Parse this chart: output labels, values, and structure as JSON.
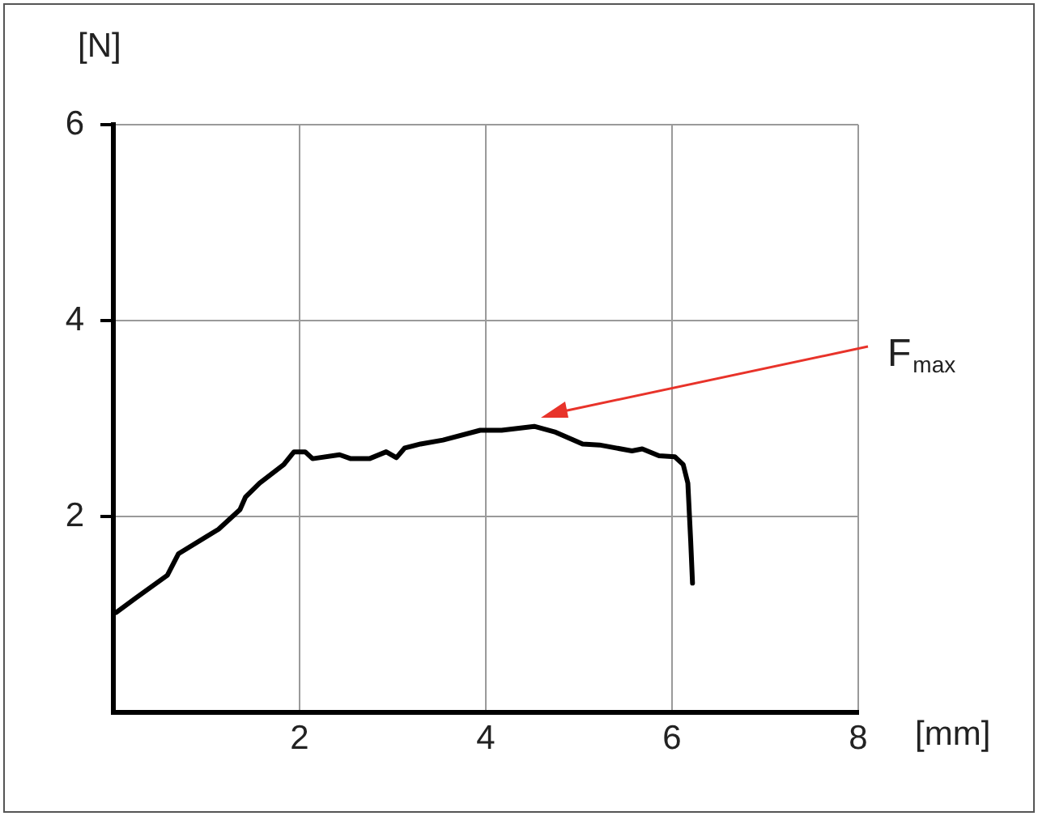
{
  "chart_data": {
    "type": "line",
    "xlabel": "[mm]",
    "ylabel": "[N]",
    "x": [
      0.03,
      0.23,
      0.58,
      0.7,
      1.13,
      1.36,
      1.42,
      1.57,
      1.83,
      1.94,
      2.06,
      2.14,
      2.43,
      2.55,
      2.75,
      2.93,
      3.04,
      3.13,
      3.3,
      3.54,
      3.94,
      4.17,
      4.52,
      4.75,
      5.04,
      5.22,
      5.57,
      5.68,
      5.86,
      6.03,
      6.12,
      6.17,
      6.2,
      6.22
    ],
    "series": [
      {
        "color": "#000000",
        "values": [
          1.02,
          1.16,
          1.4,
          1.62,
          1.87,
          2.07,
          2.2,
          2.34,
          2.53,
          2.66,
          2.66,
          2.59,
          2.63,
          2.59,
          2.59,
          2.66,
          2.6,
          2.7,
          2.74,
          2.78,
          2.88,
          2.88,
          2.92,
          2.86,
          2.74,
          2.73,
          2.67,
          2.69,
          2.62,
          2.61,
          2.53,
          2.34,
          1.76,
          1.32
        ]
      }
    ],
    "xlim": [
      0,
      8
    ],
    "xticks": [
      2,
      4,
      6,
      8
    ],
    "ylim": [
      0,
      6
    ],
    "yticks": [
      2,
      4,
      6
    ],
    "grid": true,
    "legend": false,
    "marker": "none",
    "line_style": "solid",
    "annotations": [
      "F$_{max}$"
    ]
  }
}
